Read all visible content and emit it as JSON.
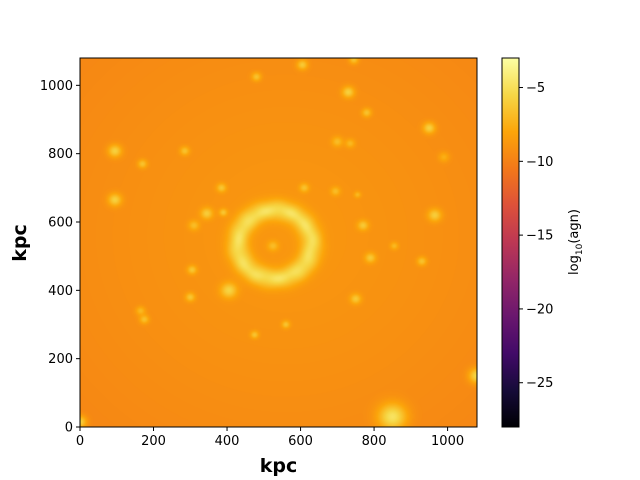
{
  "chart_data": {
    "type": "heatmap",
    "title": "",
    "xlabel": "kpc",
    "ylabel": "kpc",
    "xlim": [
      0,
      1080
    ],
    "ylim": [
      0,
      1080
    ],
    "xticks": [
      0,
      200,
      400,
      600,
      800,
      1000
    ],
    "yticks": [
      0,
      200,
      400,
      600,
      800,
      1000
    ],
    "colorbar": {
      "label_base": "log",
      "label_sub": "10",
      "label_arg": "(agn)",
      "range": [
        -28,
        -3
      ],
      "ticks": [
        -5,
        -10,
        -15,
        -20,
        -25
      ],
      "colormap": "inferno"
    },
    "field": {
      "background_value": -8.8,
      "edge_value": -9.6,
      "center": [
        560,
        560
      ],
      "ring": {
        "center": [
          530,
          535
        ],
        "radius": 100,
        "value": -5.0
      },
      "clumps": [
        {
          "x": 95,
          "y": 808,
          "r": 20,
          "v": -5.8
        },
        {
          "x": 170,
          "y": 770,
          "r": 14,
          "v": -6.5
        },
        {
          "x": 95,
          "y": 665,
          "r": 20,
          "v": -5.8
        },
        {
          "x": 285,
          "y": 808,
          "r": 14,
          "v": -6.5
        },
        {
          "x": 480,
          "y": 1025,
          "r": 14,
          "v": -6.5
        },
        {
          "x": 605,
          "y": 1060,
          "r": 16,
          "v": -6.2
        },
        {
          "x": 745,
          "y": 1075,
          "r": 14,
          "v": -6.5
        },
        {
          "x": 730,
          "y": 980,
          "r": 18,
          "v": -5.8
        },
        {
          "x": 780,
          "y": 920,
          "r": 14,
          "v": -6.5
        },
        {
          "x": 950,
          "y": 875,
          "r": 18,
          "v": -5.8
        },
        {
          "x": 990,
          "y": 790,
          "r": 16,
          "v": -7.5
        },
        {
          "x": 700,
          "y": 835,
          "r": 16,
          "v": -6.8
        },
        {
          "x": 735,
          "y": 830,
          "r": 14,
          "v": -7.0
        },
        {
          "x": 965,
          "y": 620,
          "r": 20,
          "v": -6.0
        },
        {
          "x": 930,
          "y": 485,
          "r": 14,
          "v": -6.5
        },
        {
          "x": 855,
          "y": 530,
          "r": 12,
          "v": -7.0
        },
        {
          "x": 770,
          "y": 590,
          "r": 16,
          "v": -6.2
        },
        {
          "x": 790,
          "y": 495,
          "r": 16,
          "v": -6.2
        },
        {
          "x": 750,
          "y": 375,
          "r": 16,
          "v": -6.2
        },
        {
          "x": 695,
          "y": 690,
          "r": 14,
          "v": -6.8
        },
        {
          "x": 755,
          "y": 680,
          "r": 10,
          "v": -7.0
        },
        {
          "x": 610,
          "y": 700,
          "r": 14,
          "v": -6.5
        },
        {
          "x": 385,
          "y": 700,
          "r": 14,
          "v": -6.3
        },
        {
          "x": 345,
          "y": 625,
          "r": 18,
          "v": -6.0
        },
        {
          "x": 390,
          "y": 628,
          "r": 12,
          "v": -6.3
        },
        {
          "x": 310,
          "y": 590,
          "r": 16,
          "v": -6.8
        },
        {
          "x": 305,
          "y": 460,
          "r": 14,
          "v": -6.3
        },
        {
          "x": 300,
          "y": 380,
          "r": 14,
          "v": -6.3
        },
        {
          "x": 405,
          "y": 400,
          "r": 24,
          "v": -5.6
        },
        {
          "x": 165,
          "y": 340,
          "r": 14,
          "v": -7.0
        },
        {
          "x": 175,
          "y": 315,
          "r": 14,
          "v": -6.6
        },
        {
          "x": 475,
          "y": 270,
          "r": 12,
          "v": -6.4
        },
        {
          "x": 560,
          "y": 300,
          "r": 12,
          "v": -6.4
        },
        {
          "x": 850,
          "y": 30,
          "r": 42,
          "v": -4.8
        },
        {
          "x": 1080,
          "y": 150,
          "r": 24,
          "v": -5.4
        },
        {
          "x": 0,
          "y": 15,
          "r": 20,
          "v": -5.8
        },
        {
          "x": 525,
          "y": 530,
          "r": 16,
          "v": -6.8
        }
      ]
    }
  }
}
